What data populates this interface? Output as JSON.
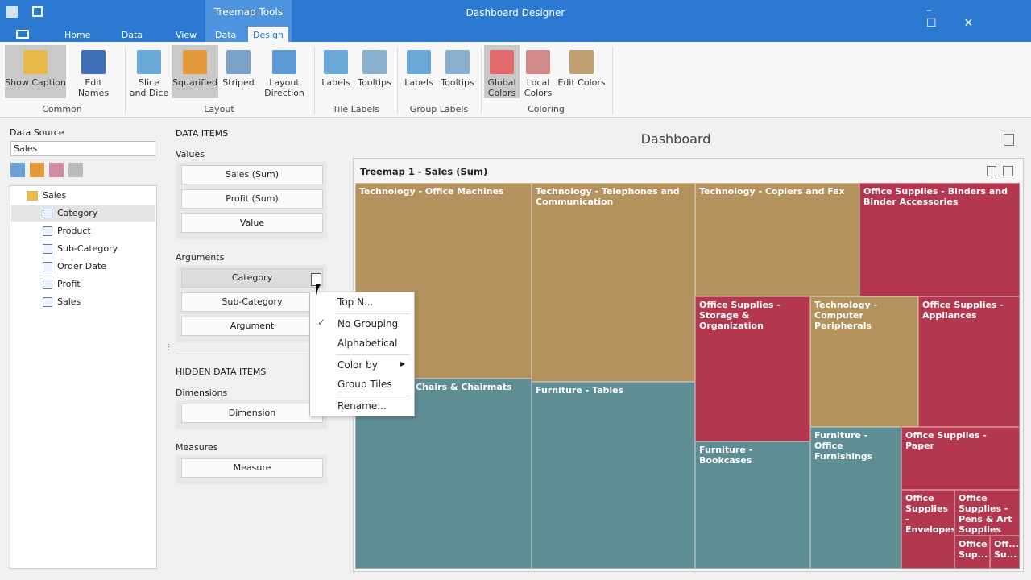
{
  "title_bar": {
    "app_title": "Dashboard Designer",
    "context_tab": "Treemap Tools"
  },
  "ribbon": {
    "tabs": [
      "Home",
      "Data Source",
      "View",
      "Data",
      "Design"
    ],
    "groups": [
      {
        "name": "Common",
        "buttons": [
          "Show Caption",
          "Edit Names"
        ]
      },
      {
        "name": "Layout",
        "buttons": [
          "Slice and Dice",
          "Squarified",
          "Striped",
          "Layout Direction"
        ]
      },
      {
        "name": "Tile Labels",
        "buttons": [
          "Labels",
          "Tooltips"
        ]
      },
      {
        "name": "Group Labels",
        "buttons": [
          "Labels",
          "Tooltips"
        ]
      },
      {
        "name": "Coloring",
        "buttons": [
          "Global Colors",
          "Local Colors",
          "Edit Colors"
        ]
      }
    ]
  },
  "data_source_panel": {
    "label": "Data Source",
    "selected": "Sales",
    "tree_root": "Sales",
    "fields": [
      "Category",
      "Product",
      "Sub-Category",
      "Order Date",
      "Profit",
      "Sales"
    ]
  },
  "data_items_panel": {
    "title": "DATA ITEMS",
    "sections": [
      {
        "label": "Values",
        "items": [
          "Sales (Sum)",
          "Profit (Sum)",
          "Value"
        ]
      },
      {
        "label": "Arguments",
        "items": [
          "Category",
          "Sub-Category",
          "Argument"
        ]
      }
    ],
    "hidden_title": "HIDDEN DATA ITEMS",
    "hidden_sections": [
      {
        "label": "Dimensions",
        "items": [
          "Dimension"
        ]
      },
      {
        "label": "Measures",
        "items": [
          "Measure"
        ]
      }
    ]
  },
  "context_menu": {
    "items": [
      "Top N...",
      "No Grouping",
      "Alphabetical",
      "Color by",
      "Group Tiles",
      "Rename..."
    ]
  },
  "dashboard": {
    "title": "Dashboard",
    "item_caption": "Treemap 1 - Sales (Sum)",
    "tiles": [
      "Technology - Office Machines",
      "Technology - Telephones and Communication",
      "Technology - Copiers and Fax",
      "Office Supplies - Binders and Binder Accessories",
      "Office Supplies - Storage & Organization",
      "Technology - Computer Peripherals",
      "Office Supplies - Appliances",
      "Furniture - Chairs & Chairmats",
      "Furniture - Tables",
      "Furniture - Bookcases",
      "Furniture - Office Furnishings",
      "Office Supplies - Paper",
      "Office Supplies - Envelopes",
      "Office Supplies - Pens & Art Supplies",
      "Office Sup...",
      "Off... Su..."
    ]
  }
}
